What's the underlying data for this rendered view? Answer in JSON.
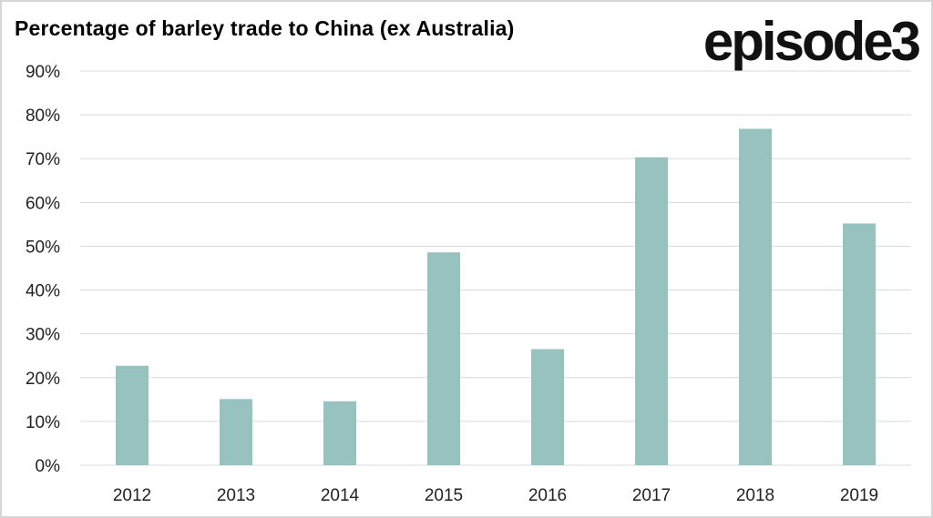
{
  "header": {
    "title": "Percentage of barley trade to China (ex Australia)",
    "logo": "episode3"
  },
  "colors": {
    "bar": "#97c2c0",
    "grid": "#d9d9d9",
    "text": "#222222"
  },
  "chart_data": {
    "type": "bar",
    "title": "Percentage of barley trade to China (ex Australia)",
    "xlabel": "",
    "ylabel": "",
    "categories": [
      "2012",
      "2013",
      "2014",
      "2015",
      "2016",
      "2017",
      "2018",
      "2019"
    ],
    "values": [
      22.7,
      15.1,
      14.6,
      48.6,
      26.5,
      70.3,
      76.8,
      55.2
    ],
    "unit": "%",
    "ylim": [
      0,
      90
    ],
    "yticks": [
      "0%",
      "10%",
      "20%",
      "30%",
      "40%",
      "50%",
      "60%",
      "70%",
      "80%",
      "90%"
    ],
    "grid": true,
    "legend": "none"
  }
}
